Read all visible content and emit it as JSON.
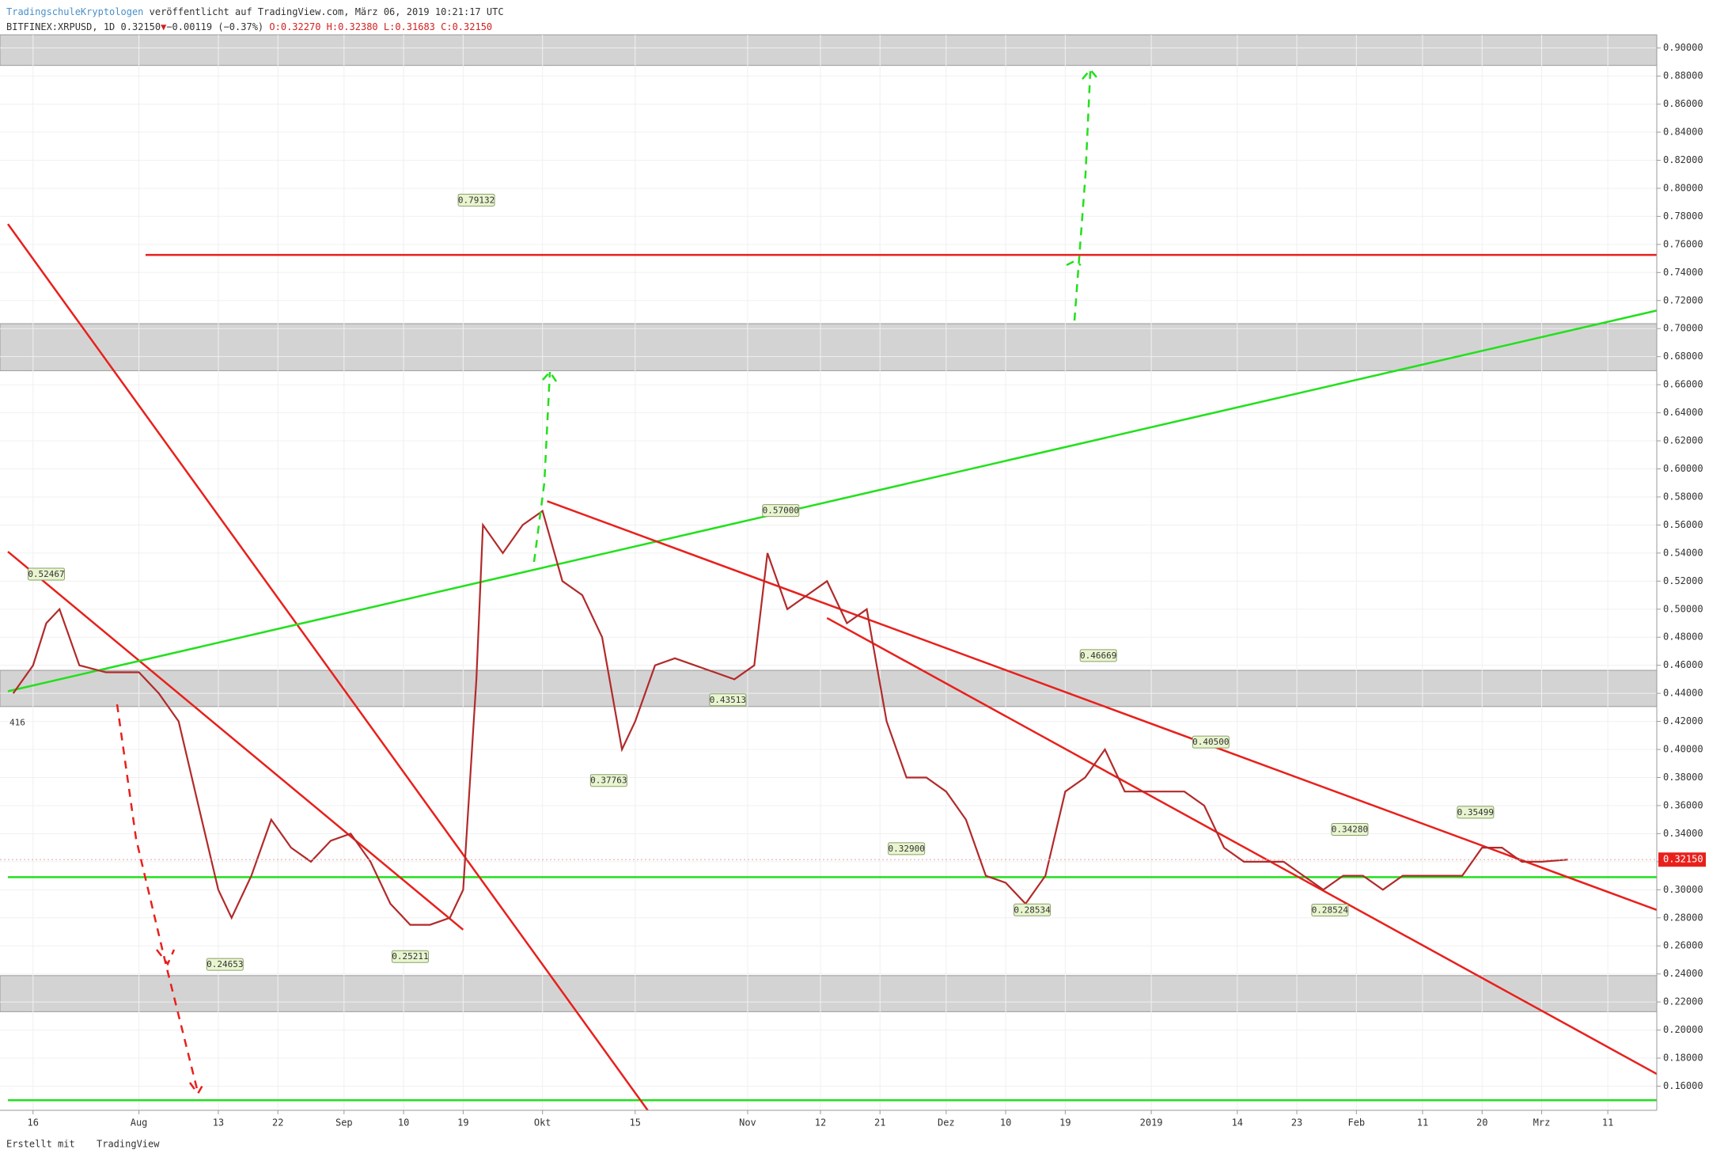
{
  "header": {
    "author": "TradingschuleKryptologen",
    "published": "veröffentlicht auf TradingView.com, März 06, 2019 10:21:17 UTC",
    "symbol": "BITFINEX:XRPUSD, 1D",
    "price": "0.32150",
    "arrow": "▼",
    "change": "−0.00119 (−0.37%)",
    "ohlc": "O:0.32270 H:0.32380 L:0.31683 C:0.32150"
  },
  "footer": {
    "made_with": "Erstellt mit",
    "brand": "TradingView"
  },
  "chart_data": {
    "type": "line",
    "xlim": [
      11.2,
      260.4
    ],
    "ylim": [
      0.1428,
      0.9094
    ],
    "xticks": [
      {
        "value": 15,
        "label": "16"
      },
      {
        "value": 31,
        "label": "Aug"
      },
      {
        "value": 43,
        "label": "13"
      },
      {
        "value": 52,
        "label": "22"
      },
      {
        "value": 62,
        "label": "Sep"
      },
      {
        "value": 71,
        "label": "10"
      },
      {
        "value": 80,
        "label": "19"
      },
      {
        "value": 92,
        "label": "Okt"
      },
      {
        "value": 106,
        "label": "15"
      },
      {
        "value": 123,
        "label": "Nov"
      },
      {
        "value": 134,
        "label": "12"
      },
      {
        "value": 143,
        "label": "21"
      },
      {
        "value": 153,
        "label": "Dez"
      },
      {
        "value": 162,
        "label": "10"
      },
      {
        "value": 171,
        "label": "19"
      },
      {
        "value": 184,
        "label": "2019"
      },
      {
        "value": 197,
        "label": "14"
      },
      {
        "value": 206,
        "label": "23"
      },
      {
        "value": 215,
        "label": "Feb"
      },
      {
        "value": 225,
        "label": "11"
      },
      {
        "value": 234,
        "label": "20"
      },
      {
        "value": 243,
        "label": "Mrz"
      },
      {
        "value": 253,
        "label": "11"
      }
    ],
    "yticks": [
      {
        "value": 0.16,
        "label": "0.16000"
      },
      {
        "value": 0.18,
        "label": "0.18000"
      },
      {
        "value": 0.2,
        "label": "0.20000"
      },
      {
        "value": 0.22,
        "label": "0.22000"
      },
      {
        "value": 0.24,
        "label": "0.24000"
      },
      {
        "value": 0.26,
        "label": "0.26000"
      },
      {
        "value": 0.28,
        "label": "0.28000"
      },
      {
        "value": 0.3,
        "label": "0.30000"
      },
      {
        "value": 0.32,
        "label": "0.32000"
      },
      {
        "value": 0.34,
        "label": "0.34000"
      },
      {
        "value": 0.36,
        "label": "0.36000"
      },
      {
        "value": 0.38,
        "label": "0.38000"
      },
      {
        "value": 0.4,
        "label": "0.40000"
      },
      {
        "value": 0.42,
        "label": "0.42000"
      },
      {
        "value": 0.44,
        "label": "0.44000"
      },
      {
        "value": 0.46,
        "label": "0.46000"
      },
      {
        "value": 0.48,
        "label": "0.48000"
      },
      {
        "value": 0.5,
        "label": "0.50000"
      },
      {
        "value": 0.52,
        "label": "0.52000"
      },
      {
        "value": 0.54,
        "label": "0.54000"
      },
      {
        "value": 0.56,
        "label": "0.56000"
      },
      {
        "value": 0.58,
        "label": "0.58000"
      },
      {
        "value": 0.6,
        "label": "0.60000"
      },
      {
        "value": 0.62,
        "label": "0.62000"
      },
      {
        "value": 0.64,
        "label": "0.64000"
      },
      {
        "value": 0.66,
        "label": "0.66000"
      },
      {
        "value": 0.68,
        "label": "0.68000"
      },
      {
        "value": 0.7,
        "label": "0.70000"
      },
      {
        "value": 0.72,
        "label": "0.72000"
      },
      {
        "value": 0.74,
        "label": "0.74000"
      },
      {
        "value": 0.76,
        "label": "0.76000"
      },
      {
        "value": 0.78,
        "label": "0.78000"
      },
      {
        "value": 0.8,
        "label": "0.80000"
      },
      {
        "value": 0.82,
        "label": "0.82000"
      },
      {
        "value": 0.84,
        "label": "0.84000"
      },
      {
        "value": 0.86,
        "label": "0.86000"
      },
      {
        "value": 0.88,
        "label": "0.88000"
      },
      {
        "value": 0.9,
        "label": "0.90000"
      }
    ],
    "grid": true,
    "series": [
      {
        "name": "XRPUSD",
        "color": "#b22a2a",
        "x": [
          12,
          15,
          17,
          19,
          22,
          26,
          31,
          34,
          37,
          40,
          43,
          45,
          48,
          51,
          54,
          57,
          60,
          63,
          66,
          69,
          72,
          75,
          78,
          80,
          82,
          83,
          86,
          89,
          92,
          95,
          98,
          101,
          104,
          106,
          109,
          112,
          115,
          118,
          121,
          124,
          126,
          129,
          132,
          135,
          138,
          141,
          144,
          147,
          150,
          153,
          156,
          159,
          162,
          165,
          168,
          171,
          174,
          177,
          180,
          183,
          186,
          189,
          192,
          195,
          198,
          201,
          204,
          207,
          210,
          213,
          216,
          219,
          222,
          225,
          228,
          231,
          234,
          237,
          240,
          243,
          247
        ],
        "values": [
          0.44,
          0.46,
          0.49,
          0.5,
          0.46,
          0.455,
          0.455,
          0.44,
          0.42,
          0.36,
          0.3,
          0.28,
          0.31,
          0.35,
          0.33,
          0.32,
          0.335,
          0.34,
          0.32,
          0.29,
          0.275,
          0.275,
          0.28,
          0.3,
          0.45,
          0.56,
          0.54,
          0.56,
          0.57,
          0.52,
          0.51,
          0.48,
          0.4,
          0.42,
          0.46,
          0.465,
          0.46,
          0.455,
          0.45,
          0.46,
          0.54,
          0.5,
          0.51,
          0.52,
          0.49,
          0.5,
          0.42,
          0.38,
          0.38,
          0.37,
          0.35,
          0.31,
          0.305,
          0.29,
          0.31,
          0.37,
          0.38,
          0.4,
          0.37,
          0.37,
          0.37,
          0.37,
          0.36,
          0.33,
          0.32,
          0.32,
          0.32,
          0.31,
          0.3,
          0.31,
          0.31,
          0.3,
          0.31,
          0.31,
          0.31,
          0.31,
          0.33,
          0.33,
          0.32,
          0.32,
          0.3215
        ]
      }
    ],
    "annotations": [
      {
        "x": 17,
        "value": 0.52467
      },
      {
        "x": 44,
        "value": 0.24653
      },
      {
        "x": 72,
        "value": 0.25211
      },
      {
        "x": 82,
        "value": 0.79132
      },
      {
        "x": 102,
        "value": 0.37763
      },
      {
        "x": 120,
        "value": 0.43513
      },
      {
        "x": 128,
        "value": 0.57,
        "label": "0.57000"
      },
      {
        "x": 147,
        "value": 0.329,
        "label": "0.32900"
      },
      {
        "x": 166,
        "value": 0.28534
      },
      {
        "x": 176,
        "value": 0.46669
      },
      {
        "x": 193,
        "value": 0.405,
        "label": "0.40500"
      },
      {
        "x": 214,
        "value": 0.3428,
        "label": "0.34280"
      },
      {
        "x": 211,
        "value": 0.28524
      },
      {
        "x": 233,
        "value": 0.35499
      }
    ],
    "cut_label": "416",
    "last_price": {
      "value": 0.3215,
      "label": "0.32150"
    },
    "zones": [
      [
        0.8876,
        0.9094
      ],
      [
        0.67,
        0.7035
      ],
      [
        0.4306,
        0.4564
      ],
      [
        0.2131,
        0.2388
      ]
    ],
    "levels": [
      {
        "value": 0.7525,
        "color": "#e8201c",
        "from": 32
      },
      {
        "value": 0.309,
        "color": "#22e01c",
        "from": 11.2
      },
      {
        "value": 0.15,
        "color": "#22e01c",
        "from": 11.2
      }
    ],
    "trend_lines": [
      {
        "color": "#e8201c",
        "x": [
          11.2,
          107.9
        ],
        "values": [
          0.7745,
          0.1428
        ]
      },
      {
        "color": "#e8201c",
        "x": [
          11.2,
          80
        ],
        "values": [
          0.541,
          0.2715
        ]
      },
      {
        "color": "#22e01c",
        "x": [
          11.2,
          260.4
        ],
        "values": [
          0.4415,
          0.7129
        ]
      },
      {
        "color": "#e8201c",
        "x": [
          92.7,
          260.4
        ],
        "values": [
          0.577,
          0.2856
        ]
      },
      {
        "color": "#e8201c",
        "x": [
          135,
          260.4
        ],
        "values": [
          0.4937,
          0.1687
        ]
      }
    ]
  }
}
